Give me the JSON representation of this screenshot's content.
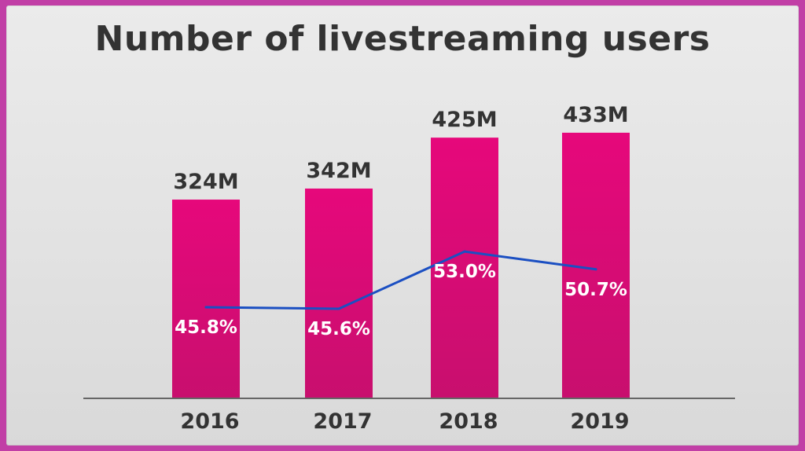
{
  "chart_data": {
    "type": "bar",
    "title": "Number of livestreaming users",
    "categories": [
      "2016",
      "2017",
      "2018",
      "2019"
    ],
    "series": [
      {
        "values": [
          324,
          342,
          425,
          433
        ],
        "value_labels": [
          "324M",
          "342M",
          "425M",
          "433M"
        ],
        "color": "#e1097a"
      },
      {
        "values": [
          45.8,
          45.6,
          53.0,
          50.7
        ],
        "value_labels": [
          "45.8%",
          "45.6%",
          "53.0%",
          "50.7%"
        ],
        "color": "#1b4fc2"
      }
    ],
    "xlabel": "",
    "ylabel": "",
    "grid": false,
    "legend": "none"
  },
  "colors": {
    "border": "#c13fa6",
    "background": "#e6e6e6",
    "text": "#333333",
    "bar": "#e1097a",
    "line": "#1b4fc2"
  }
}
